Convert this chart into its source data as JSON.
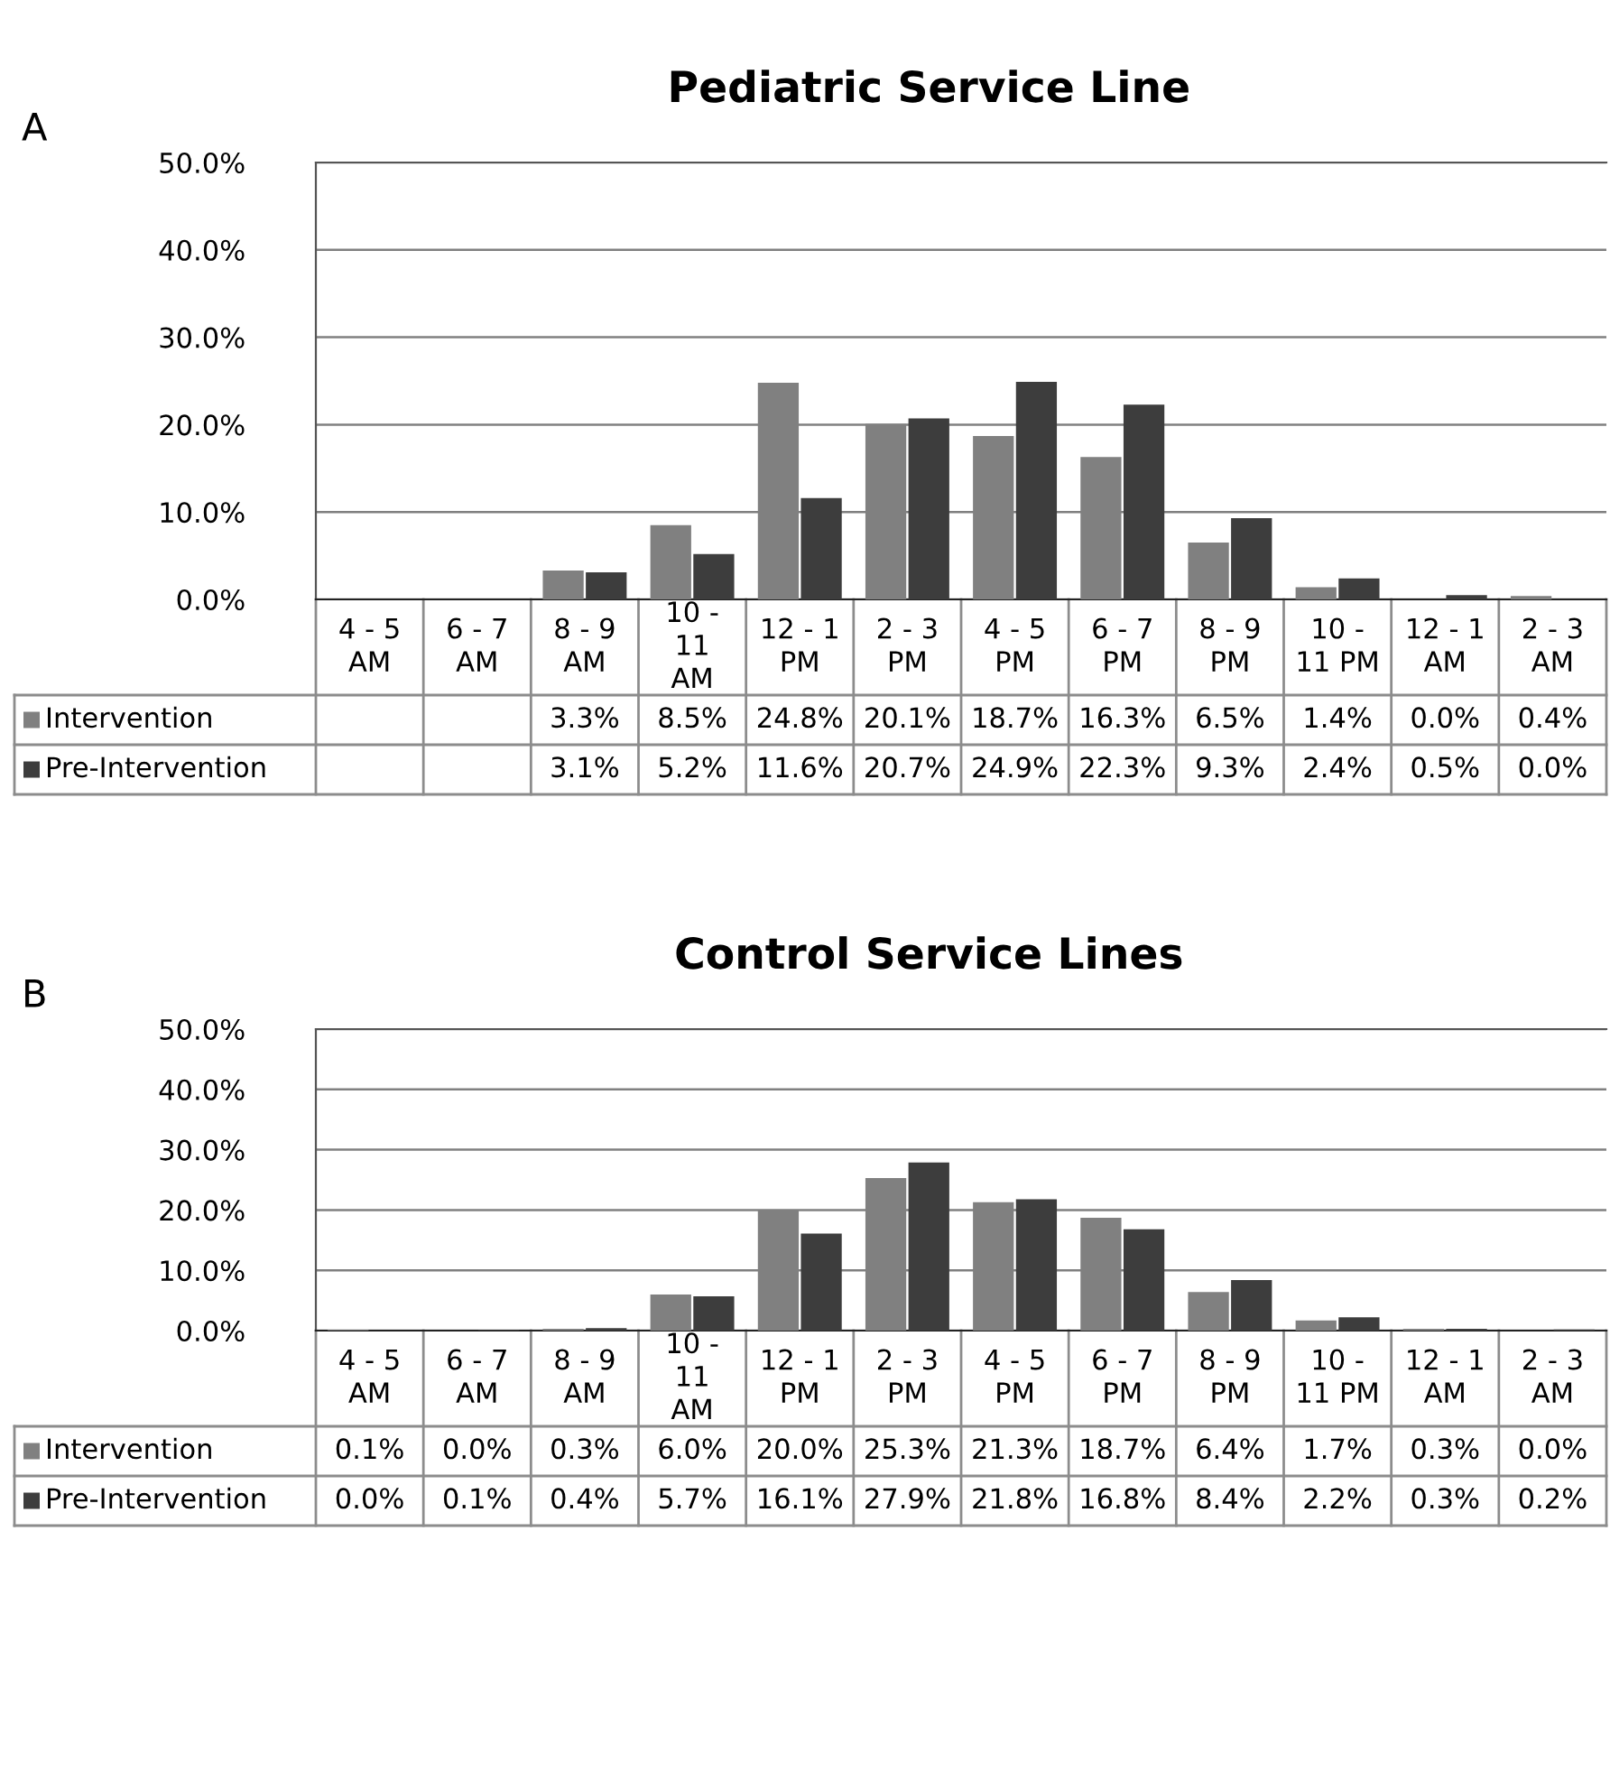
{
  "chart_data": [
    {
      "type": "bar",
      "title": "Pediatric Service Line",
      "annotations": [
        "A"
      ],
      "categories": [
        "4 - 5\nAM",
        "6 - 7\nAM",
        "8 - 9\nAM",
        "10 -\n11\nAM",
        "12 - 1\nPM",
        "2 - 3\nPM",
        "4 - 5\nPM",
        "6 - 7\nPM",
        "8 - 9\nPM",
        "10 -\n11 PM",
        "12 - 1\nAM",
        "2 - 3\nAM"
      ],
      "series": [
        {
          "name": "Intervention",
          "color": "#808080",
          "values": [
            null,
            null,
            3.3,
            8.5,
            24.8,
            20.1,
            18.7,
            16.3,
            6.5,
            1.4,
            0.0,
            0.4
          ],
          "value_labels": [
            null,
            null,
            "3.3%",
            "8.5%",
            "24.8%",
            "20.1%",
            "18.7%",
            "16.3%",
            "6.5%",
            "1.4%",
            "0.0%",
            "0.4%"
          ]
        },
        {
          "name": "Pre-Intervention",
          "color": "#3d3d3d",
          "values": [
            null,
            null,
            3.1,
            5.2,
            11.6,
            20.7,
            24.9,
            22.3,
            9.3,
            2.4,
            0.5,
            0.0
          ],
          "value_labels": [
            null,
            null,
            "3.1%",
            "5.2%",
            "11.6%",
            "20.7%",
            "24.9%",
            "22.3%",
            "9.3%",
            "2.4%",
            "0.5%",
            "0.0%"
          ]
        }
      ],
      "ylim": [
        0,
        50
      ],
      "yticks": [
        {
          "value": 0,
          "label": "0.0%"
        },
        {
          "value": 10,
          "label": "10.0%"
        },
        {
          "value": 20,
          "label": "20.0%"
        },
        {
          "value": 30,
          "label": "30.0%"
        },
        {
          "value": 40,
          "label": "40.0%"
        },
        {
          "value": 50,
          "label": "50.0%"
        }
      ],
      "grid": "y",
      "legend": "bottom left"
    },
    {
      "type": "bar",
      "title": "Control Service Lines",
      "annotations": [
        "B"
      ],
      "categories": [
        "4 - 5\nAM",
        "6 - 7\nAM",
        "8 - 9\nAM",
        "10 -\n11\nAM",
        "12 - 1\nPM",
        "2 - 3\nPM",
        "4 - 5\nPM",
        "6 - 7\nPM",
        "8 - 9\nPM",
        "10 -\n11 PM",
        "12 - 1\nAM",
        "2 - 3\nAM"
      ],
      "series": [
        {
          "name": "Intervention",
          "color": "#808080",
          "values": [
            0.1,
            0.0,
            0.3,
            6.0,
            20.0,
            25.3,
            21.3,
            18.7,
            6.4,
            1.7,
            0.3,
            0.0
          ],
          "value_labels": [
            "0.1%",
            "0.0%",
            "0.3%",
            "6.0%",
            "20.0%",
            "25.3%",
            "21.3%",
            "18.7%",
            "6.4%",
            "1.7%",
            "0.3%",
            "0.0%"
          ]
        },
        {
          "name": "Pre-Intervention",
          "color": "#3d3d3d",
          "values": [
            0.0,
            0.1,
            0.4,
            5.7,
            16.1,
            27.9,
            21.8,
            16.8,
            8.4,
            2.2,
            0.3,
            0.2
          ],
          "value_labels": [
            "0.0%",
            "0.1%",
            "0.4%",
            "5.7%",
            "16.1%",
            "27.9%",
            "21.8%",
            "16.8%",
            "8.4%",
            "2.2%",
            "0.3%",
            "0.2%"
          ]
        }
      ],
      "ylim": [
        0,
        50
      ],
      "yticks": [
        {
          "value": 0,
          "label": "0.0%"
        },
        {
          "value": 10,
          "label": "10.0%"
        },
        {
          "value": 20,
          "label": "20.0%"
        },
        {
          "value": 30,
          "label": "30.0%"
        },
        {
          "value": 40,
          "label": "40.0%"
        },
        {
          "value": 50,
          "label": "50.0%"
        }
      ],
      "grid": "y",
      "legend": "bottom left"
    }
  ]
}
